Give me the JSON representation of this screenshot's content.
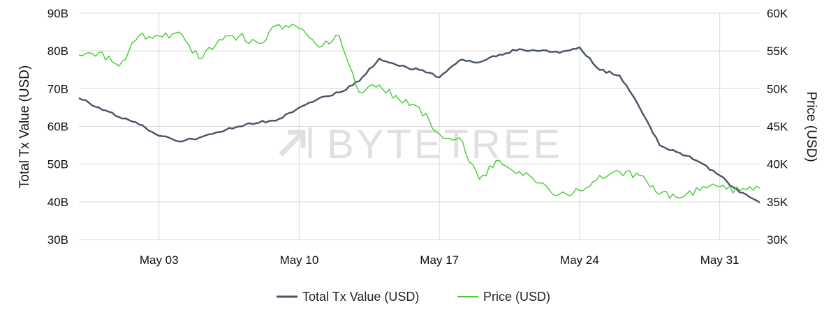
{
  "chart_data": {
    "type": "line",
    "title": "",
    "xlabel": "",
    "x_range": [
      "2021-04-29",
      "2021-06-02"
    ],
    "x_ticks": [
      "May 03",
      "May 10",
      "May 17",
      "May 24",
      "May 31"
    ],
    "x_tick_dates": [
      "2021-05-03",
      "2021-05-10",
      "2021-05-17",
      "2021-05-24",
      "2021-05-31"
    ],
    "y_left": {
      "label": "Total Tx Value (USD)",
      "range": [
        30,
        90
      ],
      "ticks": [
        30,
        40,
        50,
        60,
        70,
        80,
        90
      ],
      "tick_labels": [
        "30B",
        "40B",
        "50B",
        "60B",
        "70B",
        "80B",
        "90B"
      ]
    },
    "y_right": {
      "label": "Price (USD)",
      "range": [
        30,
        60
      ],
      "ticks": [
        30,
        35,
        40,
        45,
        50,
        55,
        60
      ],
      "tick_labels": [
        "30K",
        "35K",
        "40K",
        "45K",
        "50K",
        "55K",
        "60K"
      ]
    },
    "grid": true,
    "legend_position": "bottom-center",
    "watermark": "BYTETREE",
    "series": [
      {
        "name": "Total Tx Value (USD)",
        "axis": "left",
        "color": "#475369",
        "points": [
          [
            "2021-04-29",
            67.5
          ],
          [
            "2021-04-30",
            65.0
          ],
          [
            "2021-05-01",
            62.5
          ],
          [
            "2021-05-02",
            60.5
          ],
          [
            "2021-05-03",
            57.5
          ],
          [
            "2021-05-04",
            56.0
          ],
          [
            "2021-05-05",
            57.0
          ],
          [
            "2021-05-06",
            58.5
          ],
          [
            "2021-05-07",
            60.0
          ],
          [
            "2021-05-08",
            61.0
          ],
          [
            "2021-05-09",
            62.0
          ],
          [
            "2021-05-10",
            65.0
          ],
          [
            "2021-05-11",
            67.5
          ],
          [
            "2021-05-12",
            69.0
          ],
          [
            "2021-05-13",
            72.0
          ],
          [
            "2021-05-14",
            78.0
          ],
          [
            "2021-05-15",
            76.0
          ],
          [
            "2021-05-16",
            75.0
          ],
          [
            "2021-05-17",
            73.0
          ],
          [
            "2021-05-18",
            77.5
          ],
          [
            "2021-05-19",
            77.0
          ],
          [
            "2021-05-20",
            79.0
          ],
          [
            "2021-05-21",
            80.5
          ],
          [
            "2021-05-22",
            80.0
          ],
          [
            "2021-05-23",
            79.5
          ],
          [
            "2021-05-24",
            81.0
          ],
          [
            "2021-05-25",
            75.0
          ],
          [
            "2021-05-26",
            73.5
          ],
          [
            "2021-05-27",
            65.0
          ],
          [
            "2021-05-28",
            55.0
          ],
          [
            "2021-05-29",
            53.0
          ],
          [
            "2021-05-30",
            50.5
          ],
          [
            "2021-05-31",
            47.0
          ],
          [
            "2021-06-01",
            42.5
          ],
          [
            "2021-06-02",
            39.8
          ]
        ]
      },
      {
        "name": "Price (USD)",
        "axis": "right",
        "color": "#44cc33",
        "points": [
          [
            "2021-04-29",
            54.5
          ],
          [
            "2021-04-30",
            54.8
          ],
          [
            "2021-05-01",
            53.0
          ],
          [
            "2021-05-02",
            57.0
          ],
          [
            "2021-05-03",
            57.0
          ],
          [
            "2021-05-04",
            57.5
          ],
          [
            "2021-05-05",
            54.0
          ],
          [
            "2021-05-06",
            56.5
          ],
          [
            "2021-05-07",
            57.0
          ],
          [
            "2021-05-08",
            56.0
          ],
          [
            "2021-05-09",
            58.5
          ],
          [
            "2021-05-10",
            58.0
          ],
          [
            "2021-05-11",
            55.5
          ],
          [
            "2021-05-12",
            57.0
          ],
          [
            "2021-05-13",
            49.5
          ],
          [
            "2021-05-14",
            50.5
          ],
          [
            "2021-05-15",
            48.5
          ],
          [
            "2021-05-16",
            47.5
          ],
          [
            "2021-05-17",
            44.0
          ],
          [
            "2021-05-18",
            43.5
          ],
          [
            "2021-05-19",
            38.0
          ],
          [
            "2021-05-20",
            40.5
          ],
          [
            "2021-05-21",
            39.0
          ],
          [
            "2021-05-22",
            37.5
          ],
          [
            "2021-05-23",
            36.0
          ],
          [
            "2021-05-24",
            36.5
          ],
          [
            "2021-05-25",
            38.5
          ],
          [
            "2021-05-26",
            39.0
          ],
          [
            "2021-05-27",
            38.5
          ],
          [
            "2021-05-28",
            36.0
          ],
          [
            "2021-05-29",
            35.5
          ],
          [
            "2021-05-30",
            36.5
          ],
          [
            "2021-05-31",
            37.0
          ],
          [
            "2021-06-01",
            36.5
          ],
          [
            "2021-06-02",
            36.8
          ]
        ]
      }
    ]
  }
}
